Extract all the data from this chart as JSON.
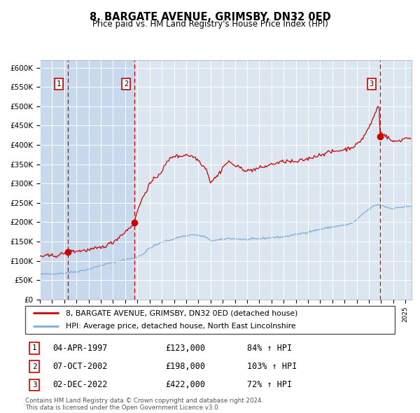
{
  "title": "8, BARGATE AVENUE, GRIMSBY, DN32 0ED",
  "subtitle": "Price paid vs. HM Land Registry's House Price Index (HPI)",
  "ylim": [
    0,
    620000
  ],
  "xlim_start": 1995.0,
  "xlim_end": 2025.5,
  "bg_color": "#ffffff",
  "plot_bg_color": "#dce6f1",
  "grid_color": "#ffffff",
  "hpi_line_color": "#7aaddc",
  "price_line_color": "#cc0000",
  "marker_color": "#cc0000",
  "dashed_line_color": "#cc0000",
  "shade_color": "#c9d9ed",
  "transaction_dates": [
    1997.27,
    2002.77,
    2022.92
  ],
  "transaction_prices": [
    123000,
    198000,
    422000
  ],
  "transaction_labels": [
    "1",
    "2",
    "3"
  ],
  "legend_line1": "8, BARGATE AVENUE, GRIMSBY, DN32 0ED (detached house)",
  "legend_line2": "HPI: Average price, detached house, North East Lincolnshire",
  "table_entries": [
    {
      "num": "1",
      "date": "04-APR-1997",
      "price": "£123,000",
      "pct": "84% ↑ HPI"
    },
    {
      "num": "2",
      "date": "07-OCT-2002",
      "price": "£198,000",
      "pct": "103% ↑ HPI"
    },
    {
      "num": "3",
      "date": "02-DEC-2022",
      "price": "£422,000",
      "pct": "72% ↑ HPI"
    }
  ],
  "footnote": "Contains HM Land Registry data © Crown copyright and database right 2024.\nThis data is licensed under the Open Government Licence v3.0.",
  "yticks": [
    0,
    50000,
    100000,
    150000,
    200000,
    250000,
    300000,
    350000,
    400000,
    450000,
    500000,
    550000,
    600000
  ],
  "ytick_labels": [
    "£0",
    "£50K",
    "£100K",
    "£150K",
    "£200K",
    "£250K",
    "£300K",
    "£350K",
    "£400K",
    "£450K",
    "£500K",
    "£550K",
    "£600K"
  ],
  "hpi_control_points": [
    [
      1995.0,
      65000
    ],
    [
      1996.0,
      66500
    ],
    [
      1997.0,
      68000
    ],
    [
      1998.0,
      72000
    ],
    [
      1999.0,
      78000
    ],
    [
      2000.0,
      88000
    ],
    [
      2001.0,
      96000
    ],
    [
      2002.0,
      103000
    ],
    [
      2002.77,
      107000
    ],
    [
      2003.5,
      118000
    ],
    [
      2004.0,
      133000
    ],
    [
      2005.0,
      148000
    ],
    [
      2005.5,
      152000
    ],
    [
      2006.5,
      162000
    ],
    [
      2007.5,
      168000
    ],
    [
      2008.5,
      163000
    ],
    [
      2009.0,
      152000
    ],
    [
      2009.5,
      153000
    ],
    [
      2010.5,
      158000
    ],
    [
      2011.5,
      156000
    ],
    [
      2012.0,
      155000
    ],
    [
      2013.0,
      157000
    ],
    [
      2014.0,
      160000
    ],
    [
      2015.0,
      162000
    ],
    [
      2016.0,
      168000
    ],
    [
      2016.5,
      171000
    ],
    [
      2017.5,
      178000
    ],
    [
      2018.5,
      185000
    ],
    [
      2019.5,
      190000
    ],
    [
      2020.0,
      192000
    ],
    [
      2020.5,
      196000
    ],
    [
      2021.0,
      205000
    ],
    [
      2021.5,
      222000
    ],
    [
      2022.5,
      244000
    ],
    [
      2022.92,
      246000
    ],
    [
      2023.5,
      238000
    ],
    [
      2024.0,
      235000
    ],
    [
      2024.5,
      238000
    ],
    [
      2025.0,
      240000
    ]
  ],
  "price_control_points": [
    [
      1995.0,
      112000
    ],
    [
      1995.5,
      112500
    ],
    [
      1996.0,
      113000
    ],
    [
      1996.5,
      114000
    ],
    [
      1997.0,
      120000
    ],
    [
      1997.27,
      123000
    ],
    [
      1997.5,
      124000
    ],
    [
      1998.0,
      125000
    ],
    [
      1999.0,
      128000
    ],
    [
      2000.0,
      134000
    ],
    [
      2001.0,
      148000
    ],
    [
      2001.5,
      162000
    ],
    [
      2002.0,
      175000
    ],
    [
      2002.5,
      190000
    ],
    [
      2002.77,
      198000
    ],
    [
      2003.0,
      230000
    ],
    [
      2003.5,
      268000
    ],
    [
      2004.0,
      298000
    ],
    [
      2004.5,
      315000
    ],
    [
      2005.0,
      332000
    ],
    [
      2005.3,
      348000
    ],
    [
      2005.5,
      358000
    ],
    [
      2005.8,
      368000
    ],
    [
      2006.0,
      372000
    ],
    [
      2006.3,
      370000
    ],
    [
      2006.7,
      372000
    ],
    [
      2007.0,
      375000
    ],
    [
      2007.3,
      372000
    ],
    [
      2007.7,
      368000
    ],
    [
      2008.0,
      360000
    ],
    [
      2008.3,
      350000
    ],
    [
      2008.7,
      335000
    ],
    [
      2009.0,
      303000
    ],
    [
      2009.2,
      310000
    ],
    [
      2009.5,
      318000
    ],
    [
      2009.8,
      330000
    ],
    [
      2010.0,
      342000
    ],
    [
      2010.3,
      352000
    ],
    [
      2010.5,
      356000
    ],
    [
      2010.8,
      352000
    ],
    [
      2011.0,
      345000
    ],
    [
      2011.3,
      342000
    ],
    [
      2011.7,
      338000
    ],
    [
      2012.0,
      332000
    ],
    [
      2012.3,
      335000
    ],
    [
      2012.7,
      337000
    ],
    [
      2013.0,
      340000
    ],
    [
      2013.5,
      344000
    ],
    [
      2014.0,
      350000
    ],
    [
      2014.5,
      353000
    ],
    [
      2015.0,
      357000
    ],
    [
      2015.3,
      358000
    ],
    [
      2015.7,
      356000
    ],
    [
      2016.0,
      355000
    ],
    [
      2016.5,
      360000
    ],
    [
      2017.0,
      364000
    ],
    [
      2017.5,
      370000
    ],
    [
      2018.0,
      374000
    ],
    [
      2018.5,
      380000
    ],
    [
      2019.0,
      382000
    ],
    [
      2019.5,
      385000
    ],
    [
      2020.0,
      388000
    ],
    [
      2020.5,
      393000
    ],
    [
      2021.0,
      400000
    ],
    [
      2021.5,
      418000
    ],
    [
      2022.0,
      445000
    ],
    [
      2022.3,
      465000
    ],
    [
      2022.6,
      490000
    ],
    [
      2022.75,
      500000
    ],
    [
      2022.85,
      495000
    ],
    [
      2022.92,
      422000
    ],
    [
      2023.0,
      435000
    ],
    [
      2023.3,
      425000
    ],
    [
      2023.7,
      415000
    ],
    [
      2024.0,
      408000
    ],
    [
      2024.3,
      410000
    ],
    [
      2024.7,
      413000
    ],
    [
      2025.0,
      418000
    ]
  ]
}
